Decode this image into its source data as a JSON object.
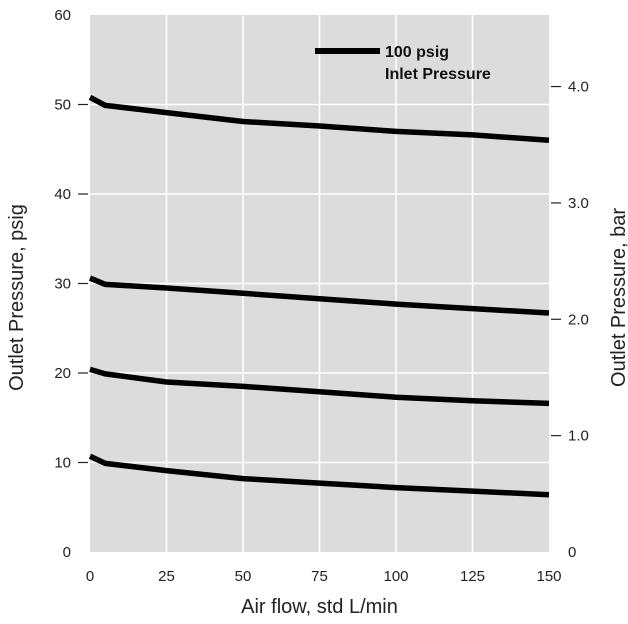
{
  "chart_data": {
    "type": "line",
    "xlabel": "Air flow, std L/min",
    "ylabel": "Outlet Pressure, psig",
    "y2label": "Outlet Pressure, bar",
    "xlim": [
      0,
      150
    ],
    "ylim": [
      0,
      60
    ],
    "y2lim": [
      0,
      4.615
    ],
    "x_ticks": [
      0,
      25,
      50,
      75,
      100,
      125,
      150
    ],
    "y_ticks": [
      0,
      10,
      20,
      30,
      40,
      50,
      60
    ],
    "y2_ticks": [
      "0",
      "1.0",
      "2.0",
      "3.0",
      "4.0"
    ],
    "y2_tick_values": [
      0,
      1.0,
      2.0,
      3.0,
      4.0
    ],
    "grid": true,
    "legend": {
      "line1": "100 psig",
      "line2": "Inlet Pressure",
      "placement": "top-right"
    },
    "series": [
      {
        "x": [
          0,
          5,
          25,
          50,
          75,
          100,
          125,
          150
        ],
        "y": [
          50.8,
          49.9,
          49.1,
          48.1,
          47.6,
          47.0,
          46.6,
          46.0
        ]
      },
      {
        "x": [
          0,
          5,
          25,
          50,
          75,
          100,
          125,
          150
        ],
        "y": [
          30.6,
          29.9,
          29.5,
          28.9,
          28.3,
          27.7,
          27.2,
          26.7
        ]
      },
      {
        "x": [
          0,
          5,
          25,
          50,
          75,
          100,
          125,
          150
        ],
        "y": [
          20.4,
          19.9,
          19.0,
          18.5,
          17.9,
          17.3,
          16.9,
          16.6
        ]
      },
      {
        "x": [
          0,
          5,
          25,
          50,
          75,
          100,
          125,
          150
        ],
        "y": [
          10.7,
          9.9,
          9.1,
          8.2,
          7.7,
          7.2,
          6.8,
          6.4
        ]
      }
    ]
  }
}
